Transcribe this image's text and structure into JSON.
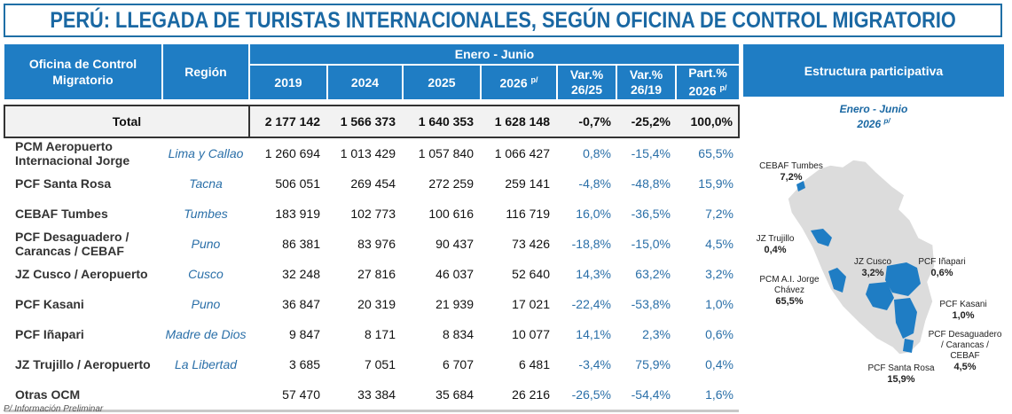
{
  "title": "PERÚ: LLEGADA DE TURISTAS INTERNACIONALES, SEGÚN OFICINA DE CONTROL MIGRATORIO",
  "header": {
    "col_office": "Oficina de Control Migratorio",
    "col_region": "Región",
    "period": "Enero - Junio",
    "y2019": "2019",
    "y2024": "2024",
    "y2025": "2025",
    "y2026": "2026",
    "y2026_sup": "p/",
    "var1": "Var.% 26/25",
    "var2": "Var.% 26/19",
    "part": "Part.% 2026",
    "part_sup": "p/"
  },
  "total": {
    "label": "Total",
    "v2019": "2 177 142",
    "v2024": "1 566 373",
    "v2025": "1 640 353",
    "v2026": "1 628 148",
    "var1": "-0,7%",
    "var2": "-25,2%",
    "part": "100,0%"
  },
  "rows": [
    {
      "name": "PCM Aeropuerto Internacional Jorge",
      "region": "Lima y Callao",
      "v2019": "1 260 694",
      "v2024": "1 013 429",
      "v2025": "1 057 840",
      "v2026": "1 066 427",
      "var1": "0,8%",
      "var2": "-15,4%",
      "part": "65,5%"
    },
    {
      "name": "PCF Santa Rosa",
      "region": "Tacna",
      "v2019": "506 051",
      "v2024": "269 454",
      "v2025": "272 259",
      "v2026": "259 141",
      "var1": "-4,8%",
      "var2": "-48,8%",
      "part": "15,9%"
    },
    {
      "name": "CEBAF Tumbes",
      "region": "Tumbes",
      "v2019": "183 919",
      "v2024": "102 773",
      "v2025": "100 616",
      "v2026": "116 719",
      "var1": "16,0%",
      "var2": "-36,5%",
      "part": "7,2%"
    },
    {
      "name": "PCF Desaguadero / Carancas / CEBAF",
      "region": "Puno",
      "v2019": "86 381",
      "v2024": "83 976",
      "v2025": "90 437",
      "v2026": "73 426",
      "var1": "-18,8%",
      "var2": "-15,0%",
      "part": "4,5%"
    },
    {
      "name": "JZ Cusco / Aeropuerto",
      "region": "Cusco",
      "v2019": "32 248",
      "v2024": "27 816",
      "v2025": "46 037",
      "v2026": "52 640",
      "var1": "14,3%",
      "var2": "63,2%",
      "part": "3,2%"
    },
    {
      "name": "PCF Kasani",
      "region": "Puno",
      "v2019": "36 847",
      "v2024": "20 319",
      "v2025": "21 939",
      "v2026": "17 021",
      "var1": "-22,4%",
      "var2": "-53,8%",
      "part": "1,0%"
    },
    {
      "name": "PCF Iñapari",
      "region": "Madre de Dios",
      "v2019": "9 847",
      "v2024": "8 171",
      "v2025": "8 834",
      "v2026": "10 077",
      "var1": "14,1%",
      "var2": "2,3%",
      "part": "0,6%"
    },
    {
      "name": "JZ Trujillo / Aeropuerto",
      "region": "La Libertad",
      "v2019": "3 685",
      "v2024": "7 051",
      "v2025": "6 707",
      "v2026": "6 481",
      "var1": "-3,4%",
      "var2": "75,9%",
      "part": "0,4%"
    },
    {
      "name": "Otras OCM",
      "region": "",
      "v2019": "57 470",
      "v2024": "33 384",
      "v2025": "35 684",
      "v2026": "26 216",
      "var1": "-26,5%",
      "var2": "-54,4%",
      "part": "1,6%"
    }
  ],
  "side": {
    "title": "Estructura participativa",
    "period": "Enero - Junio",
    "year": "2026",
    "year_sup": "p/",
    "labels": {
      "tumbes_name": "CEBAF Tumbes",
      "tumbes_val": "7,2%",
      "trujillo_name": "JZ Trujillo",
      "trujillo_val": "0,4%",
      "cusco_name": "JZ Cusco",
      "cusco_val": "3,2%",
      "inapari_name": "PCF Iñapari",
      "inapari_val": "0,6%",
      "jch_name": "PCM A.I. Jorge Chávez",
      "jch_val": "65,5%",
      "kasani_name": "PCF Kasani",
      "kasani_val": "1,0%",
      "desag_name": "PCF Desaguadero / Carancas / CEBAF",
      "desag_val": "4,5%",
      "santarosa_name": "PCF Santa Rosa",
      "santarosa_val": "15,9%"
    },
    "colors": {
      "base": "#dcdcdc",
      "highlight": "#1f7dc4"
    }
  },
  "footnote": "P/ Información Preliminar"
}
